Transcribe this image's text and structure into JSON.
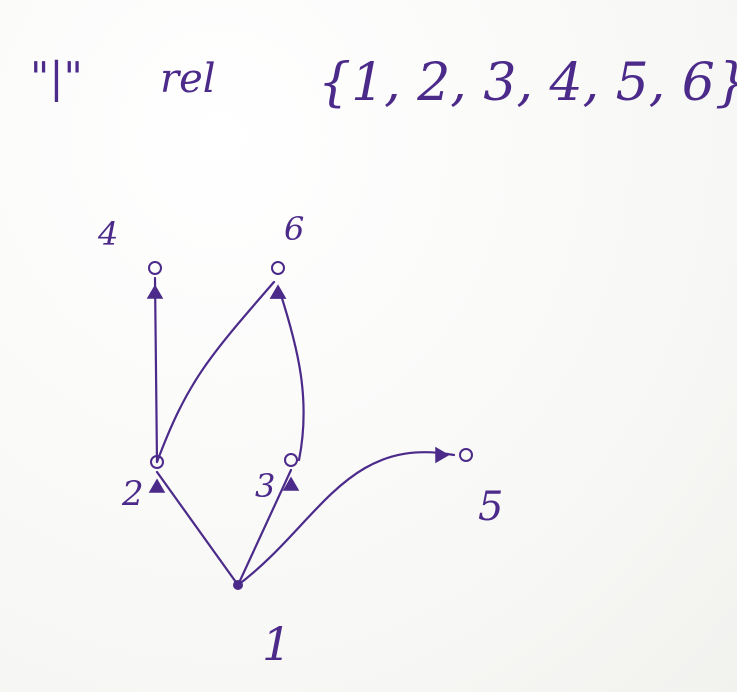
{
  "title": {
    "quote_word": "\"|\"",
    "relation": "rel",
    "set": "{1, 2, 3, 4, 5, 6}"
  },
  "nodes": [
    {
      "id": "1",
      "label": "1"
    },
    {
      "id": "2",
      "label": "2"
    },
    {
      "id": "3",
      "label": "3"
    },
    {
      "id": "4",
      "label": "4"
    },
    {
      "id": "5",
      "label": "5"
    },
    {
      "id": "6",
      "label": "6"
    }
  ],
  "edges": [
    {
      "from": "1",
      "to": "2"
    },
    {
      "from": "1",
      "to": "3"
    },
    {
      "from": "1",
      "to": "5"
    },
    {
      "from": "2",
      "to": "4"
    },
    {
      "from": "2",
      "to": "6"
    },
    {
      "from": "3",
      "to": "6"
    }
  ],
  "colors": {
    "ink": "#4b2a8a"
  }
}
